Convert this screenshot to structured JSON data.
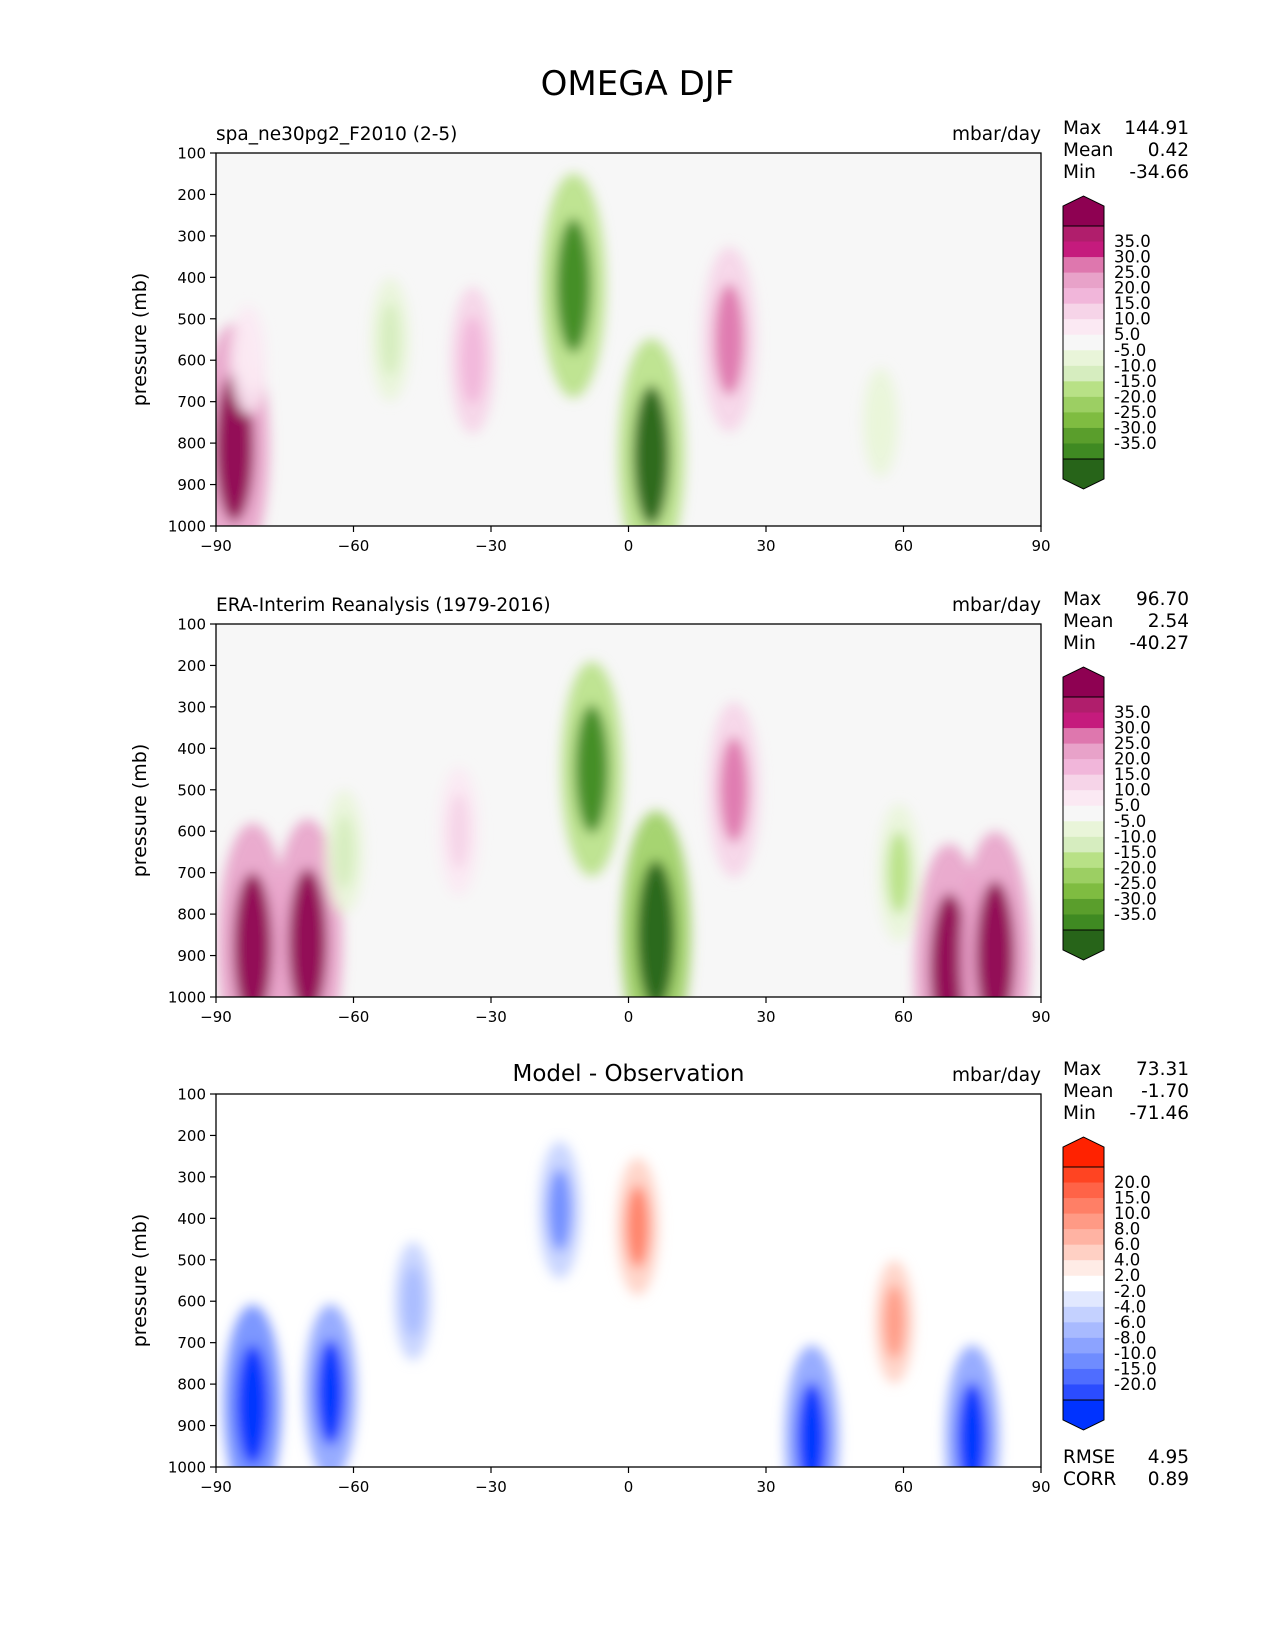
{
  "title": "OMEGA DJF",
  "chart_data": [
    {
      "type": "heatmap",
      "panel": "test",
      "title_left": "spa_ne30pg2_F2010 (2-5)",
      "title_center": "",
      "units": "mbar/day",
      "ylabel": "pressure (mb)",
      "xlim": [
        -90,
        90
      ],
      "ylim": [
        1000,
        100
      ],
      "x_ticks": [
        "−90",
        "−60",
        "−30",
        "0",
        "30",
        "60",
        "90"
      ],
      "y_ticks": [
        "100",
        "200",
        "300",
        "400",
        "500",
        "600",
        "700",
        "800",
        "900",
        "1000"
      ],
      "stats": [
        {
          "label": "Max",
          "value": "144.91"
        },
        {
          "label": "Mean",
          "value": "0.42"
        },
        {
          "label": "Min",
          "value": "-34.66"
        }
      ],
      "colorbar": {
        "labels": [
          "35.0",
          "30.0",
          "25.0",
          "20.0",
          "15.0",
          "10.0",
          "5.0",
          "-5.0",
          "-10.0",
          "-15.0",
          "-20.0",
          "-25.0",
          "-30.0",
          "-35.0"
        ],
        "colors": [
          "#8e0152",
          "#b01e6c",
          "#c51b7d",
          "#de77ae",
          "#e8a2c9",
          "#f1b6da",
          "#f6d4e8",
          "#fbe9f3",
          "#f7f7f7",
          "#e9f5d9",
          "#d6edbf",
          "#b8e186",
          "#9ccf63",
          "#7fbc41",
          "#5a9e2c",
          "#3f8a22",
          "#276419"
        ]
      },
      "features": [
        {
          "lat": -86,
          "p": 810,
          "value": 40
        },
        {
          "lat": -83,
          "p": 600,
          "value": 6
        },
        {
          "lat": -52,
          "p": 550,
          "value": -9
        },
        {
          "lat": -34,
          "p": 600,
          "value": 14
        },
        {
          "lat": -12,
          "p": 420,
          "value": -30
        },
        {
          "lat": 5,
          "p": 830,
          "value": -32
        },
        {
          "lat": 22,
          "p": 550,
          "value": 22
        },
        {
          "lat": 55,
          "p": 750,
          "value": -6
        }
      ],
      "extras": []
    },
    {
      "type": "heatmap",
      "panel": "reference",
      "title_left": "ERA-Interim Reanalysis (1979-2016)",
      "title_center": "",
      "units": "mbar/day",
      "ylabel": "pressure (mb)",
      "xlim": [
        -90,
        90
      ],
      "ylim": [
        1000,
        100
      ],
      "x_ticks": [
        "−90",
        "−60",
        "−30",
        "0",
        "30",
        "60",
        "90"
      ],
      "y_ticks": [
        "100",
        "200",
        "300",
        "400",
        "500",
        "600",
        "700",
        "800",
        "900",
        "1000"
      ],
      "stats": [
        {
          "label": "Max",
          "value": "96.70"
        },
        {
          "label": "Mean",
          "value": "2.54"
        },
        {
          "label": "Min",
          "value": "-40.27"
        }
      ],
      "colorbar": {
        "labels": [
          "35.0",
          "30.0",
          "25.0",
          "20.0",
          "15.0",
          "10.0",
          "5.0",
          "-5.0",
          "-10.0",
          "-15.0",
          "-20.0",
          "-25.0",
          "-30.0",
          "-35.0"
        ],
        "colors": [
          "#8e0152",
          "#b01e6c",
          "#c51b7d",
          "#de77ae",
          "#e8a2c9",
          "#f1b6da",
          "#f6d4e8",
          "#fbe9f3",
          "#f7f7f7",
          "#e9f5d9",
          "#d6edbf",
          "#b8e186",
          "#9ccf63",
          "#7fbc41",
          "#5a9e2c",
          "#3f8a22",
          "#276419"
        ]
      },
      "features": [
        {
          "lat": -82,
          "p": 880,
          "value": 40
        },
        {
          "lat": -70,
          "p": 870,
          "value": 40
        },
        {
          "lat": -62,
          "p": 650,
          "value": -9
        },
        {
          "lat": -37,
          "p": 600,
          "value": 10
        },
        {
          "lat": -8,
          "p": 450,
          "value": -28
        },
        {
          "lat": 6,
          "p": 850,
          "value": -36
        },
        {
          "lat": 23,
          "p": 500,
          "value": 20
        },
        {
          "lat": 59,
          "p": 700,
          "value": -12
        },
        {
          "lat": 70,
          "p": 930,
          "value": 35
        },
        {
          "lat": 80,
          "p": 900,
          "value": 35
        }
      ],
      "extras": []
    },
    {
      "type": "heatmap",
      "panel": "difference",
      "title_left": "",
      "title_center": "Model - Observation",
      "units": "mbar/day",
      "ylabel": "pressure (mb)",
      "xlim": [
        -90,
        90
      ],
      "ylim": [
        1000,
        100
      ],
      "x_ticks": [
        "−90",
        "−60",
        "−30",
        "0",
        "30",
        "60",
        "90"
      ],
      "y_ticks": [
        "100",
        "200",
        "300",
        "400",
        "500",
        "600",
        "700",
        "800",
        "900",
        "1000"
      ],
      "stats": [
        {
          "label": "Max",
          "value": "73.31"
        },
        {
          "label": "Mean",
          "value": "-1.70"
        },
        {
          "label": "Min",
          "value": "-71.46"
        }
      ],
      "colorbar": {
        "labels": [
          "20.0",
          "15.0",
          "10.0",
          "8.0",
          "6.0",
          "4.0",
          "2.0",
          "-2.0",
          "-4.0",
          "-6.0",
          "-8.0",
          "-10.0",
          "-15.0",
          "-20.0"
        ],
        "colors": [
          "#ff2200",
          "#ff4422",
          "#ff6347",
          "#ff7f66",
          "#ff9a85",
          "#ffb3a3",
          "#ffd0c4",
          "#ffece6",
          "#ffffff",
          "#e1e8ff",
          "#c4d1ff",
          "#a8baff",
          "#8ca3ff",
          "#6f8cff",
          "#4f6dff",
          "#2b4cff",
          "#0033ff"
        ]
      },
      "features": [
        {
          "lat": -82,
          "p": 850,
          "value": -25
        },
        {
          "lat": -65,
          "p": 820,
          "value": -20
        },
        {
          "lat": -47,
          "p": 600,
          "value": -8
        },
        {
          "lat": -15,
          "p": 380,
          "value": -12
        },
        {
          "lat": 2,
          "p": 420,
          "value": 12
        },
        {
          "lat": 40,
          "p": 930,
          "value": -22
        },
        {
          "lat": 58,
          "p": 650,
          "value": 9
        },
        {
          "lat": 75,
          "p": 930,
          "value": -22
        }
      ],
      "extras": [
        {
          "label": "RMSE",
          "value": "4.95"
        },
        {
          "label": "CORR",
          "value": "0.89"
        }
      ]
    }
  ]
}
